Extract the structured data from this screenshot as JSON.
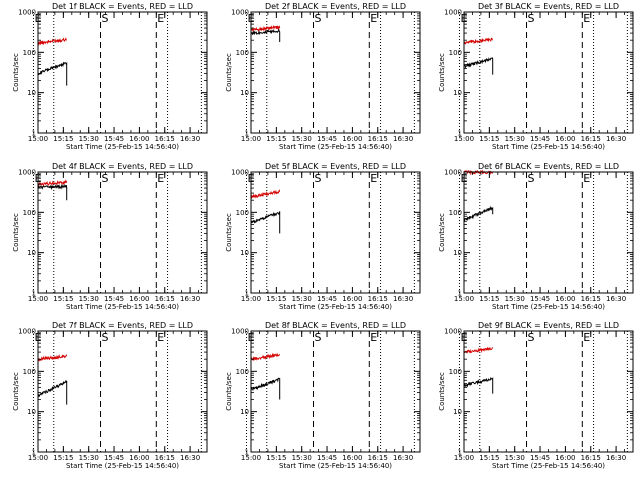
{
  "chart_data": [
    {
      "type": "line",
      "title": "Det 1f BLACK = Events, RED = LLD",
      "xlabel": "Start Time (25-Feb-15 14:56:40)",
      "ylabel": "Counts/sec",
      "yscale": "log",
      "ylim": [
        1,
        1000
      ],
      "xlim": [
        "15:00",
        "16:40"
      ],
      "x_ticks": [
        "15:00",
        "15:15",
        "15:30",
        "15:45",
        "16:00",
        "16:15",
        "16:30"
      ],
      "y_ticks": [
        "1",
        "10",
        "100",
        "1000"
      ],
      "markers": [
        {
          "label": "E",
          "time": "14:57:20",
          "style": "dotted"
        },
        {
          "label": "S",
          "time": "15:37:00",
          "style": "dashed"
        },
        {
          "label": "E",
          "time": "16:10:00",
          "style": "dashed"
        },
        {
          "label": "",
          "time": "15:09:20",
          "style": "dotted"
        },
        {
          "label": "",
          "time": "16:16:40",
          "style": "dotted"
        },
        {
          "label": "",
          "time": "16:36:40",
          "style": "dotted"
        }
      ],
      "series": [
        {
          "name": "Events",
          "color": "#000000",
          "t_start": "15:00",
          "t_end": "15:17",
          "start": 30,
          "end": 55,
          "drop": 15
        },
        {
          "name": "LLD",
          "color": "#d40000",
          "t_start": "15:00",
          "t_end": "15:17",
          "start": 170,
          "end": 210
        }
      ]
    },
    {
      "type": "line",
      "title": "Det 2f BLACK = Events, RED = LLD",
      "xlabel": "Start Time (25-Feb-15 14:56:40)",
      "ylabel": "Counts/sec",
      "yscale": "log",
      "ylim": [
        1,
        1000
      ],
      "xlim": [
        "15:00",
        "16:40"
      ],
      "x_ticks": [
        "15:00",
        "15:15",
        "15:30",
        "15:45",
        "16:00",
        "16:15",
        "16:30"
      ],
      "y_ticks": [
        "1",
        "10",
        "100",
        "1000"
      ],
      "markers": [
        {
          "label": "E",
          "time": "14:57:20",
          "style": "dotted"
        },
        {
          "label": "S",
          "time": "15:37:00",
          "style": "dashed"
        },
        {
          "label": "E",
          "time": "16:10:00",
          "style": "dashed"
        },
        {
          "label": "",
          "time": "15:09:20",
          "style": "dotted"
        },
        {
          "label": "",
          "time": "16:16:40",
          "style": "dotted"
        },
        {
          "label": "",
          "time": "16:36:40",
          "style": "dotted"
        }
      ],
      "series": [
        {
          "name": "Events",
          "color": "#000000",
          "t_start": "15:00",
          "t_end": "15:17",
          "start": 300,
          "end": 340,
          "drop": 180
        },
        {
          "name": "LLD",
          "color": "#d40000",
          "t_start": "15:00",
          "t_end": "15:17",
          "start": 360,
          "end": 420
        }
      ]
    },
    {
      "type": "line",
      "title": "Det 3f BLACK = Events, RED = LLD",
      "xlabel": "Start Time (25-Feb-15 14:56:40)",
      "ylabel": "Counts/sec",
      "yscale": "log",
      "ylim": [
        1,
        1000
      ],
      "xlim": [
        "15:00",
        "16:40"
      ],
      "x_ticks": [
        "15:00",
        "15:15",
        "15:30",
        "15:45",
        "16:00",
        "16:15",
        "16:30"
      ],
      "y_ticks": [
        "1",
        "10",
        "100",
        "1000"
      ],
      "markers": [
        {
          "label": "E",
          "time": "14:57:20",
          "style": "dotted"
        },
        {
          "label": "S",
          "time": "15:37:00",
          "style": "dashed"
        },
        {
          "label": "E",
          "time": "16:10:00",
          "style": "dashed"
        },
        {
          "label": "",
          "time": "15:09:20",
          "style": "dotted"
        },
        {
          "label": "",
          "time": "16:16:40",
          "style": "dotted"
        },
        {
          "label": "",
          "time": "16:36:40",
          "style": "dotted"
        }
      ],
      "series": [
        {
          "name": "Events",
          "color": "#000000",
          "t_start": "15:00",
          "t_end": "15:17",
          "start": 45,
          "end": 70,
          "drop": 28
        },
        {
          "name": "LLD",
          "color": "#d40000",
          "t_start": "15:00",
          "t_end": "15:17",
          "start": 170,
          "end": 210
        }
      ]
    },
    {
      "type": "line",
      "title": "Det 4f BLACK = Events, RED = LLD",
      "xlabel": "Start Time (25-Feb-15 14:56:40)",
      "ylabel": "Counts/sec",
      "yscale": "log",
      "ylim": [
        1,
        1000
      ],
      "xlim": [
        "15:00",
        "16:40"
      ],
      "x_ticks": [
        "15:00",
        "15:15",
        "15:30",
        "15:45",
        "16:00",
        "16:15",
        "16:30"
      ],
      "y_ticks": [
        "1",
        "10",
        "100",
        "1000"
      ],
      "markers": [
        {
          "label": "E",
          "time": "14:57:20",
          "style": "dotted"
        },
        {
          "label": "S",
          "time": "15:37:00",
          "style": "dashed"
        },
        {
          "label": "E",
          "time": "16:10:00",
          "style": "dashed"
        },
        {
          "label": "",
          "time": "15:09:20",
          "style": "dotted"
        },
        {
          "label": "",
          "time": "16:16:40",
          "style": "dotted"
        },
        {
          "label": "",
          "time": "16:36:40",
          "style": "dotted"
        }
      ],
      "series": [
        {
          "name": "Events",
          "color": "#000000",
          "t_start": "15:00",
          "t_end": "15:17",
          "start": 420,
          "end": 440,
          "drop": 200
        },
        {
          "name": "LLD",
          "color": "#d40000",
          "t_start": "15:00",
          "t_end": "15:17",
          "start": 500,
          "end": 560
        }
      ]
    },
    {
      "type": "line",
      "title": "Det 5f BLACK = Events, RED = LLD",
      "xlabel": "Start Time (25-Feb-15 14:56:40)",
      "ylabel": "Counts/sec",
      "yscale": "log",
      "ylim": [
        1,
        1000
      ],
      "xlim": [
        "15:00",
        "16:40"
      ],
      "x_ticks": [
        "15:00",
        "15:15",
        "15:30",
        "15:45",
        "16:00",
        "16:15",
        "16:30"
      ],
      "y_ticks": [
        "1",
        "10",
        "100",
        "1000"
      ],
      "markers": [
        {
          "label": "E",
          "time": "14:57:20",
          "style": "dotted"
        },
        {
          "label": "S",
          "time": "15:37:00",
          "style": "dashed"
        },
        {
          "label": "E",
          "time": "16:10:00",
          "style": "dashed"
        },
        {
          "label": "",
          "time": "15:09:20",
          "style": "dotted"
        },
        {
          "label": "",
          "time": "16:16:40",
          "style": "dotted"
        },
        {
          "label": "",
          "time": "16:36:40",
          "style": "dotted"
        }
      ],
      "series": [
        {
          "name": "Events",
          "color": "#000000",
          "t_start": "15:00",
          "t_end": "15:17",
          "start": 55,
          "end": 100,
          "drop": 30
        },
        {
          "name": "LLD",
          "color": "#d40000",
          "t_start": "15:00",
          "t_end": "15:17",
          "start": 240,
          "end": 330
        }
      ]
    },
    {
      "type": "line",
      "title": "Det 6f BLACK = Events, RED = LLD",
      "xlabel": "Start Time (25-Feb-15 14:56:40)",
      "ylabel": "Counts/sec",
      "yscale": "log",
      "ylim": [
        1,
        1000
      ],
      "xlim": [
        "15:00",
        "16:40"
      ],
      "x_ticks": [
        "15:00",
        "15:15",
        "15:30",
        "15:45",
        "16:00",
        "16:15",
        "16:30"
      ],
      "y_ticks": [
        "1",
        "10",
        "100",
        "1000"
      ],
      "markers": [
        {
          "label": "E",
          "time": "14:57:20",
          "style": "dotted"
        },
        {
          "label": "S",
          "time": "15:37:00",
          "style": "dashed"
        },
        {
          "label": "E",
          "time": "16:10:00",
          "style": "dashed"
        },
        {
          "label": "",
          "time": "15:09:20",
          "style": "dotted"
        },
        {
          "label": "",
          "time": "16:16:40",
          "style": "dotted"
        },
        {
          "label": "",
          "time": "16:36:40",
          "style": "dotted"
        }
      ],
      "series": [
        {
          "name": "Events",
          "color": "#000000",
          "t_start": "15:00",
          "t_end": "15:17",
          "start": 65,
          "end": 130,
          "drop": 90
        },
        {
          "name": "LLD",
          "color": "#d40000",
          "t_start": "15:00",
          "t_end": "15:17",
          "start": 990,
          "end": 990
        }
      ]
    },
    {
      "type": "line",
      "title": "Det 7f BLACK = Events, RED = LLD",
      "xlabel": "Start Time (25-Feb-15 14:56:40)",
      "ylabel": "Counts/sec",
      "yscale": "log",
      "ylim": [
        1,
        1000
      ],
      "xlim": [
        "15:00",
        "16:40"
      ],
      "x_ticks": [
        "15:00",
        "15:15",
        "15:30",
        "15:45",
        "16:00",
        "16:15",
        "16:30"
      ],
      "y_ticks": [
        "1",
        "10",
        "100",
        "1000"
      ],
      "markers": [
        {
          "label": "E",
          "time": "14:57:20",
          "style": "dotted"
        },
        {
          "label": "S",
          "time": "15:37:00",
          "style": "dashed"
        },
        {
          "label": "E",
          "time": "16:10:00",
          "style": "dashed"
        },
        {
          "label": "",
          "time": "15:09:20",
          "style": "dotted"
        },
        {
          "label": "",
          "time": "16:16:40",
          "style": "dotted"
        },
        {
          "label": "",
          "time": "16:36:40",
          "style": "dotted"
        }
      ],
      "series": [
        {
          "name": "Events",
          "color": "#000000",
          "t_start": "15:00",
          "t_end": "15:17",
          "start": 25,
          "end": 55,
          "drop": 15
        },
        {
          "name": "LLD",
          "color": "#d40000",
          "t_start": "15:00",
          "t_end": "15:17",
          "start": 200,
          "end": 240
        }
      ]
    },
    {
      "type": "line",
      "title": "Det 8f BLACK = Events, RED = LLD",
      "xlabel": "Start Time (25-Feb-15 14:56:40)",
      "ylabel": "Counts/sec",
      "yscale": "log",
      "ylim": [
        1,
        1000
      ],
      "xlim": [
        "15:00",
        "16:40"
      ],
      "x_ticks": [
        "15:00",
        "15:15",
        "15:30",
        "15:45",
        "16:00",
        "16:15",
        "16:30"
      ],
      "y_ticks": [
        "1",
        "10",
        "100",
        "1000"
      ],
      "markers": [
        {
          "label": "E",
          "time": "14:57:20",
          "style": "dotted"
        },
        {
          "label": "S",
          "time": "15:37:00",
          "style": "dashed"
        },
        {
          "label": "E",
          "time": "16:10:00",
          "style": "dashed"
        },
        {
          "label": "",
          "time": "15:09:20",
          "style": "dotted"
        },
        {
          "label": "",
          "time": "16:16:40",
          "style": "dotted"
        },
        {
          "label": "",
          "time": "16:36:40",
          "style": "dotted"
        }
      ],
      "series": [
        {
          "name": "Events",
          "color": "#000000",
          "t_start": "15:00",
          "t_end": "15:17",
          "start": 35,
          "end": 65,
          "drop": 20
        },
        {
          "name": "LLD",
          "color": "#d40000",
          "t_start": "15:00",
          "t_end": "15:17",
          "start": 200,
          "end": 260
        }
      ]
    },
    {
      "type": "line",
      "title": "Det 9f BLACK = Events, RED = LLD",
      "xlabel": "Start Time (25-Feb-15 14:56:40)",
      "ylabel": "Counts/sec",
      "yscale": "log",
      "ylim": [
        1,
        1000
      ],
      "xlim": [
        "15:00",
        "16:40"
      ],
      "x_ticks": [
        "15:00",
        "15:15",
        "15:30",
        "15:45",
        "16:00",
        "16:15",
        "16:30"
      ],
      "y_ticks": [
        "1",
        "10",
        "100",
        "1000"
      ],
      "markers": [
        {
          "label": "E",
          "time": "14:57:20",
          "style": "dotted"
        },
        {
          "label": "S",
          "time": "15:37:00",
          "style": "dashed"
        },
        {
          "label": "E",
          "time": "16:10:00",
          "style": "dashed"
        },
        {
          "label": "",
          "time": "15:09:20",
          "style": "dotted"
        },
        {
          "label": "",
          "time": "16:16:40",
          "style": "dotted"
        },
        {
          "label": "",
          "time": "16:36:40",
          "style": "dotted"
        }
      ],
      "series": [
        {
          "name": "Events",
          "color": "#000000",
          "t_start": "15:00",
          "t_end": "15:17",
          "start": 45,
          "end": 65,
          "drop": 28
        },
        {
          "name": "LLD",
          "color": "#d40000",
          "t_start": "15:00",
          "t_end": "15:17",
          "start": 300,
          "end": 370
        }
      ]
    }
  ]
}
